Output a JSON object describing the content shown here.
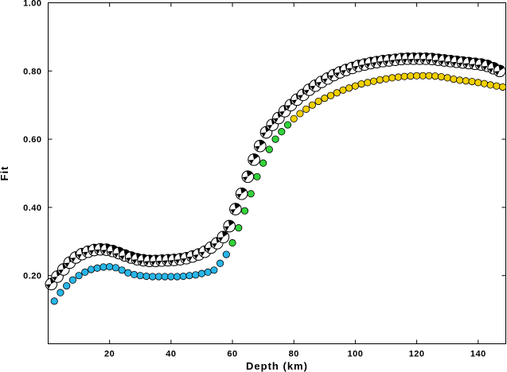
{
  "chart_data": {
    "type": "scatter",
    "title": "",
    "xlabel": "Depth (km)",
    "ylabel": "Fit",
    "xlim": [
      0,
      149
    ],
    "ylim": [
      0,
      1.0
    ],
    "x_ticks": [
      {
        "value": 20,
        "label": "20"
      },
      {
        "value": 40,
        "label": "40"
      },
      {
        "value": 60,
        "label": "60"
      },
      {
        "value": 80,
        "label": "80"
      },
      {
        "value": 100,
        "label": "100"
      },
      {
        "value": 120,
        "label": "120"
      },
      {
        "value": 140,
        "label": "140"
      }
    ],
    "y_ticks": [
      {
        "value": 0.2,
        "label": "0.20"
      },
      {
        "value": 0.4,
        "label": "0.40"
      },
      {
        "value": 0.6,
        "label": "0.60"
      },
      {
        "value": 0.8,
        "label": "0.80"
      },
      {
        "value": 1.0,
        "label": "1.00"
      }
    ],
    "grid": false,
    "legend": "none",
    "colors": {
      "cyan": "#29b6e8",
      "green": "#33d43a",
      "yellow": "#f2d000",
      "mechanism_fill": "#000000",
      "mechanism_light": "#ffffff"
    },
    "series": [
      {
        "marker": "focal-mechanism",
        "x": [
          1,
          3,
          5,
          7,
          9,
          11,
          13,
          15,
          17,
          19,
          21,
          23,
          25,
          27,
          29,
          31,
          33,
          35,
          37,
          39,
          41,
          43,
          45,
          47,
          49,
          51,
          53,
          55,
          57,
          59,
          61,
          63,
          65,
          67,
          69,
          71,
          73,
          75,
          77,
          79,
          81,
          83,
          85,
          87,
          89,
          91,
          93,
          95,
          97,
          99,
          101,
          103,
          105,
          107,
          109,
          111,
          113,
          115,
          117,
          119,
          121,
          123,
          125,
          127,
          129,
          131,
          133,
          135,
          137,
          139,
          141,
          143,
          145,
          147
        ],
        "y": [
          0.175,
          0.197,
          0.218,
          0.238,
          0.253,
          0.263,
          0.27,
          0.275,
          0.277,
          0.276,
          0.272,
          0.266,
          0.259,
          0.253,
          0.248,
          0.245,
          0.243,
          0.243,
          0.244,
          0.245,
          0.246,
          0.248,
          0.251,
          0.256,
          0.262,
          0.27,
          0.282,
          0.295,
          0.313,
          0.345,
          0.395,
          0.44,
          0.49,
          0.54,
          0.58,
          0.62,
          0.642,
          0.662,
          0.682,
          0.7,
          0.716,
          0.73,
          0.745,
          0.757,
          0.768,
          0.778,
          0.788,
          0.796,
          0.803,
          0.809,
          0.815,
          0.819,
          0.823,
          0.826,
          0.829,
          0.831,
          0.833,
          0.835,
          0.836,
          0.836,
          0.836,
          0.836,
          0.835,
          0.833,
          0.831,
          0.829,
          0.827,
          0.825,
          0.823,
          0.821,
          0.819,
          0.815,
          0.808,
          0.8
        ]
      },
      {
        "marker": "circle",
        "x": [
          2,
          4,
          6,
          8,
          10,
          12,
          14,
          16,
          18,
          20,
          22,
          24,
          26,
          28,
          30,
          32,
          34,
          36,
          38,
          40,
          42,
          44,
          46,
          48,
          50,
          52,
          54,
          56,
          58,
          60,
          62,
          64,
          66,
          68,
          70,
          72,
          74,
          76,
          78,
          80,
          82,
          84,
          86,
          88,
          90,
          92,
          94,
          96,
          98,
          100,
          102,
          104,
          106,
          108,
          110,
          112,
          114,
          116,
          118,
          120,
          122,
          124,
          126,
          128,
          130,
          132,
          134,
          136,
          138,
          140,
          142,
          144,
          146,
          148
        ],
        "y": [
          0.125,
          0.15,
          0.17,
          0.187,
          0.2,
          0.21,
          0.218,
          0.222,
          0.225,
          0.226,
          0.223,
          0.216,
          0.208,
          0.203,
          0.2,
          0.198,
          0.197,
          0.197,
          0.197,
          0.197,
          0.197,
          0.198,
          0.2,
          0.202,
          0.206,
          0.21,
          0.216,
          0.236,
          0.262,
          0.296,
          0.34,
          0.39,
          0.44,
          0.49,
          0.53,
          0.57,
          0.6,
          0.622,
          0.642,
          0.66,
          0.675,
          0.688,
          0.7,
          0.711,
          0.72,
          0.728,
          0.736,
          0.744,
          0.75,
          0.756,
          0.762,
          0.766,
          0.77,
          0.774,
          0.777,
          0.78,
          0.782,
          0.784,
          0.785,
          0.786,
          0.786,
          0.786,
          0.785,
          0.783,
          0.78,
          0.776,
          0.773,
          0.771,
          0.769,
          0.766,
          0.763,
          0.759,
          0.756,
          0.753
        ]
      }
    ]
  }
}
